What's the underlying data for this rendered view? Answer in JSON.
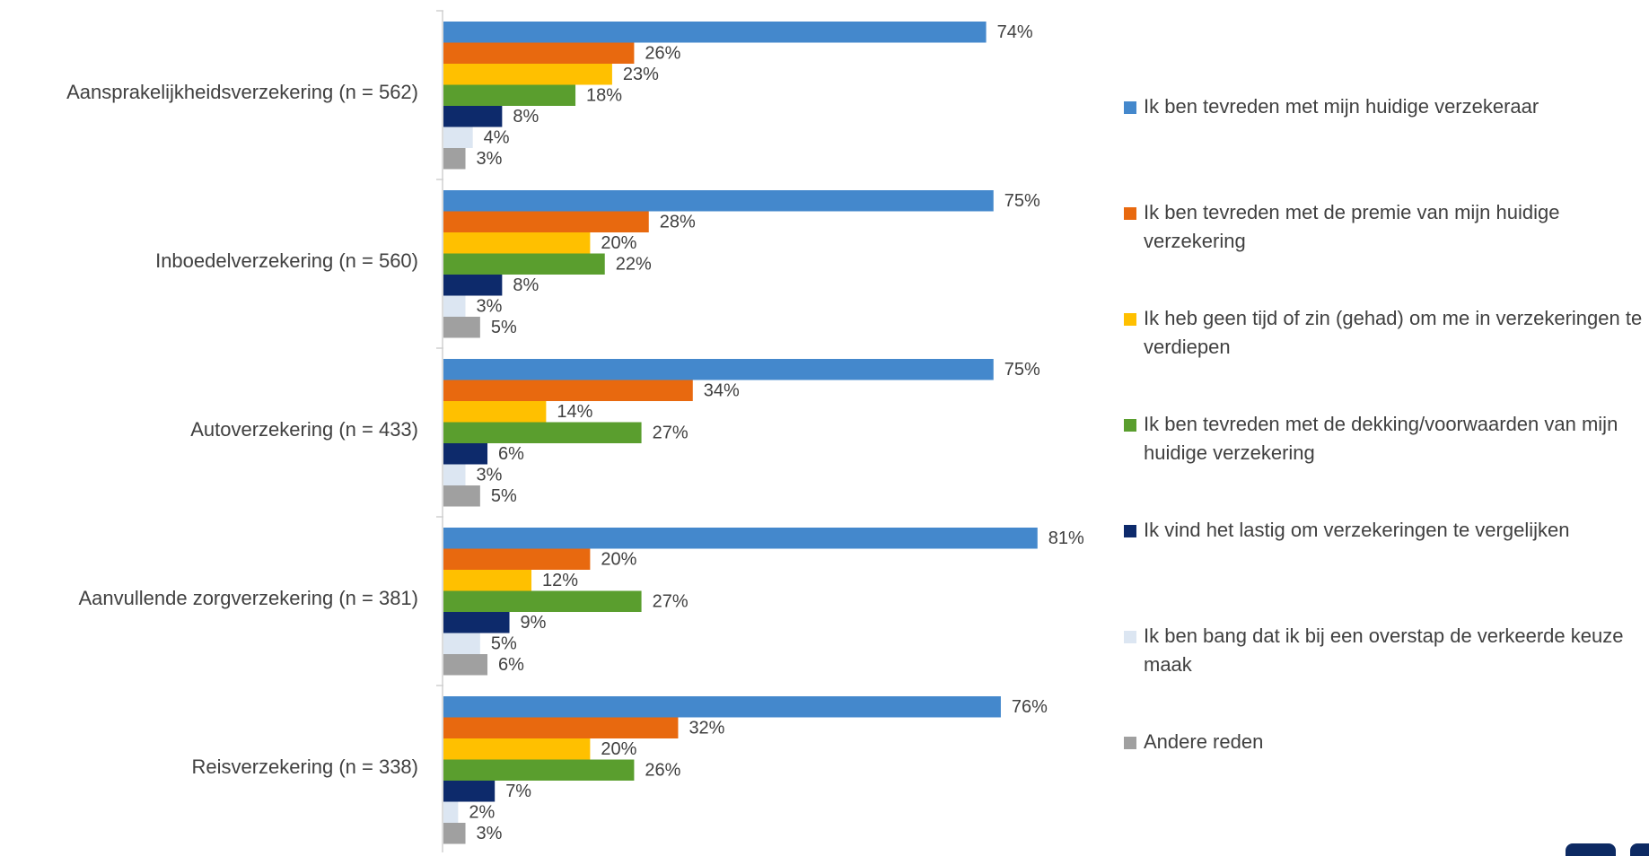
{
  "chart_data": {
    "type": "bar",
    "orientation": "horizontal",
    "categories": [
      "Aansprakelijkheidsverzekering (n = 562)",
      "Inboedelverzekering (n = 560)",
      "Autoverzekering (n = 433)",
      "Aanvullende zorgverzekering (n = 381)",
      "Reisverzekering (n = 338)"
    ],
    "series": [
      {
        "name": "Ik ben tevreden met mijn huidige verzekeraar",
        "color": "#4488CC",
        "values": [
          74,
          75,
          75,
          81,
          76
        ]
      },
      {
        "name": "Ik ben tevreden met de premie van mijn huidige verzekering",
        "color": "#E8690F",
        "values": [
          26,
          28,
          34,
          20,
          32
        ]
      },
      {
        "name": "Ik heb geen tijd of zin (gehad) om me in verzekeringen te verdiepen",
        "color": "#FFC000",
        "values": [
          23,
          20,
          14,
          12,
          20
        ]
      },
      {
        "name": "Ik ben tevreden met de dekking/voorwaarden van mijn huidige verzekering",
        "color": "#5A9E2E",
        "values": [
          18,
          22,
          27,
          27,
          26
        ]
      },
      {
        "name": "Ik vind het lastig om verzekeringen te vergelijken",
        "color": "#0D2A6B",
        "values": [
          8,
          8,
          6,
          9,
          7
        ]
      },
      {
        "name": "Ik ben bang dat ik bij een overstap de verkeerde keuze maak",
        "color": "#DCE6F2",
        "values": [
          4,
          3,
          3,
          5,
          2
        ]
      },
      {
        "name": "Andere reden",
        "color": "#A0A0A0",
        "values": [
          3,
          5,
          5,
          6,
          3
        ]
      }
    ],
    "value_suffix": "%",
    "xlim": [
      0,
      100
    ],
    "legend_position": "right",
    "grid": false
  },
  "legend": {
    "items": [
      "Ik ben tevreden met mijn huidige verzekeraar",
      "Ik ben tevreden met de premie van mijn huidige verzekering",
      "Ik heb geen tijd of zin (gehad) om me in verzekeringen te verdiepen",
      "Ik ben tevreden met de dekking/voorwaarden van mijn huidige verzekering",
      "Ik vind het lastig om verzekeringen te vergelijken",
      "Ik ben bang dat ik bij een overstap de verkeerde keuze maak",
      "Andere reden"
    ]
  }
}
